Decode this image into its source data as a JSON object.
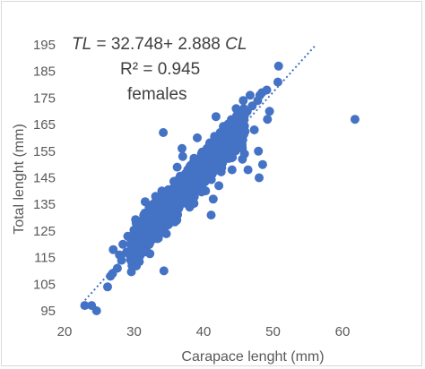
{
  "chart_data": {
    "type": "scatter",
    "xlabel": "Carapace lenght (mm)",
    "ylabel": "Total lenght (mm)",
    "xlim": [
      20,
      65
    ],
    "ylim": [
      95,
      195
    ],
    "x_ticks": [
      "20",
      "30",
      "40",
      "50",
      "60"
    ],
    "y_ticks": [
      "95",
      "105",
      "115",
      "125",
      "135",
      "145",
      "155",
      "165",
      "175",
      "185",
      "195"
    ],
    "grid": false,
    "marker_color": "#4472c4",
    "annotation": {
      "equation_prefix": "TL",
      "equation_body": " = 32.748+ 2.888 ",
      "equation_suffix": "CL",
      "r_squared": "R² = 0.945",
      "group": "females"
    },
    "trendline": {
      "style": "dotted",
      "intercept": 32.748,
      "slope": 2.888,
      "x_range": [
        22.5,
        56
      ]
    },
    "series": [
      {
        "points": [
          [
            22.9,
            97
          ],
          [
            23.9,
            97
          ],
          [
            24.6,
            95
          ],
          [
            26.2,
            104
          ],
          [
            26.6,
            108
          ],
          [
            26.9,
            109
          ],
          [
            27.6,
            111
          ],
          [
            28.2,
            114
          ],
          [
            28.9,
            117
          ],
          [
            29.4,
            116
          ],
          [
            29.8,
            119
          ],
          [
            30.2,
            121
          ],
          [
            30.7,
            122
          ],
          [
            31.0,
            124
          ],
          [
            31.5,
            126
          ],
          [
            31.9,
            127
          ],
          [
            32.3,
            129
          ],
          [
            32.6,
            131
          ],
          [
            33.0,
            127
          ],
          [
            33.4,
            133
          ],
          [
            33.8,
            134
          ],
          [
            34.2,
            130
          ],
          [
            34.6,
            137
          ],
          [
            34.9,
            136
          ],
          [
            35.3,
            139
          ],
          [
            35.6,
            141
          ],
          [
            36.0,
            138
          ],
          [
            36.4,
            143
          ],
          [
            36.8,
            145
          ],
          [
            37.1,
            142
          ],
          [
            37.5,
            146
          ],
          [
            37.9,
            148
          ],
          [
            38.2,
            147
          ],
          [
            38.6,
            150
          ],
          [
            39.0,
            152
          ],
          [
            39.3,
            149
          ],
          [
            39.7,
            154
          ],
          [
            40.1,
            151
          ],
          [
            40.5,
            156
          ],
          [
            40.9,
            158
          ],
          [
            41.2,
            155
          ],
          [
            41.6,
            160
          ],
          [
            42.0,
            157
          ],
          [
            42.4,
            162
          ],
          [
            42.8,
            159
          ],
          [
            43.2,
            164
          ],
          [
            43.6,
            161
          ],
          [
            44.0,
            166
          ],
          [
            44.5,
            163
          ],
          [
            45.0,
            168
          ],
          [
            45.6,
            165
          ],
          [
            46.3,
            170
          ],
          [
            47.0,
            172
          ],
          [
            47.8,
            174
          ],
          [
            48.4,
            177
          ],
          [
            49.1,
            178
          ],
          [
            50.7,
            181
          ],
          [
            50.8,
            187
          ],
          [
            27.0,
            118
          ],
          [
            28.4,
            120
          ],
          [
            29.1,
            123
          ],
          [
            30.3,
            128
          ],
          [
            31.4,
            131
          ],
          [
            32.2,
            120
          ],
          [
            33.1,
            138
          ],
          [
            33.7,
            125
          ],
          [
            34.3,
            110
          ],
          [
            34.2,
            162
          ],
          [
            35.2,
            132
          ],
          [
            36.2,
            149
          ],
          [
            37.0,
            153
          ],
          [
            38.2,
            140
          ],
          [
            39.1,
            160
          ],
          [
            40.3,
            145
          ],
          [
            41.1,
            131
          ],
          [
            41.8,
            168
          ],
          [
            42.6,
            151
          ],
          [
            43.5,
            158
          ],
          [
            44.1,
            148
          ],
          [
            45.2,
            160
          ],
          [
            45.9,
            154
          ],
          [
            46.4,
            148
          ],
          [
            47.3,
            163
          ],
          [
            47.9,
            155
          ],
          [
            48.1,
            176
          ],
          [
            48.5,
            150
          ],
          [
            49.2,
            167
          ],
          [
            31.6,
            136
          ],
          [
            35.7,
            129
          ],
          [
            36.5,
            135
          ],
          [
            38.0,
            134
          ],
          [
            39.6,
            142
          ],
          [
            40.7,
            148
          ],
          [
            43.0,
            154
          ],
          [
            44.7,
            171
          ],
          [
            46.7,
            176
          ],
          [
            48.0,
            145
          ],
          [
            61.8,
            167
          ],
          [
            27.9,
            116
          ],
          [
            29.7,
            112
          ],
          [
            30.0,
            124
          ],
          [
            32.8,
            124
          ],
          [
            34.0,
            140
          ],
          [
            36.9,
            156
          ],
          [
            41.4,
            137
          ],
          [
            42.2,
            142
          ],
          [
            45.6,
            152
          ],
          [
            49.5,
            170
          ]
        ]
      }
    ]
  }
}
